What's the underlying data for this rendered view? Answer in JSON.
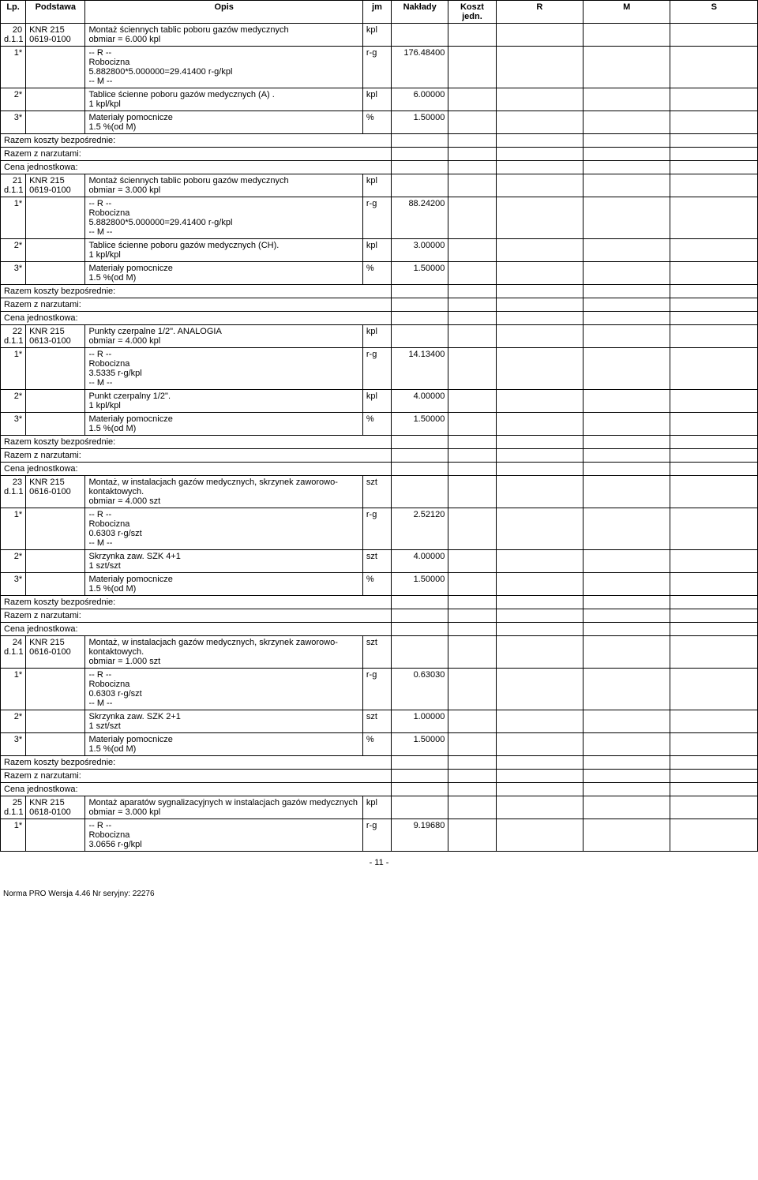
{
  "headers": {
    "lp": "Lp.",
    "podstawa": "Podstawa",
    "opis": "Opis",
    "jm": "jm",
    "naklady": "Nakłady",
    "koszt": "Koszt jedn.",
    "r": "R",
    "m": "M",
    "s": "S"
  },
  "summary_labels": {
    "razem_bez": "Razem koszty bezpośrednie:",
    "razem_narz": "Razem z narzutami:",
    "cena": "Cena jednostkowa:"
  },
  "items": [
    {
      "lp": "20 d.1.1",
      "podstawa": "KNR 215 0619-0100",
      "opis_main": "Montaż ściennych tablic poboru gazów medycznych\nobmiar = 6.000 kpl",
      "jm_main": "kpl",
      "sub": [
        {
          "lp": "1*",
          "opis": "-- R --\nRobocizna\n5.882800*5.000000=29.41400 r-g/kpl\n-- M --",
          "jm": "r-g",
          "naklady": "176.48400"
        },
        {
          "lp": "2*",
          "opis": "Tablice ścienne poboru gazów medycznych (A) .\n1 kpl/kpl",
          "jm": "kpl",
          "naklady": "6.00000"
        },
        {
          "lp": "3*",
          "opis": "Materiały pomocnicze\n1.5 %(od M)",
          "jm": "%",
          "naklady": "1.50000"
        }
      ]
    },
    {
      "lp": "21 d.1.1",
      "podstawa": "KNR 215 0619-0100",
      "opis_main": "Montaż ściennych tablic poboru gazów medycznych\nobmiar = 3.000 kpl",
      "jm_main": "kpl",
      "sub": [
        {
          "lp": "1*",
          "opis": "-- R --\nRobocizna\n5.882800*5.000000=29.41400 r-g/kpl\n-- M --",
          "jm": "r-g",
          "naklady": "88.24200"
        },
        {
          "lp": "2*",
          "opis": "Tablice ścienne poboru gazów medycznych (CH).\n1 kpl/kpl",
          "jm": "kpl",
          "naklady": "3.00000"
        },
        {
          "lp": "3*",
          "opis": "Materiały pomocnicze\n1.5 %(od M)",
          "jm": "%",
          "naklady": "1.50000"
        }
      ]
    },
    {
      "lp": "22 d.1.1",
      "podstawa": "KNR 215 0613-0100",
      "opis_main": "Punkty czerpalne 1/2\". ANALOGIA\nobmiar = 4.000 kpl",
      "jm_main": "kpl",
      "sub": [
        {
          "lp": "1*",
          "opis": "-- R --\nRobocizna\n3.5335 r-g/kpl\n-- M --",
          "jm": "r-g",
          "naklady": "14.13400"
        },
        {
          "lp": "2*",
          "opis": "Punkt czerpalny 1/2\".\n1 kpl/kpl",
          "jm": "kpl",
          "naklady": "4.00000"
        },
        {
          "lp": "3*",
          "opis": "Materiały pomocnicze\n1.5 %(od M)",
          "jm": "%",
          "naklady": "1.50000"
        }
      ]
    },
    {
      "lp": "23 d.1.1",
      "podstawa": "KNR 215 0616-0100",
      "opis_main": "Montaż, w instalacjach gazów medycznych, skrzynek zaworowo-kontaktowych.\nobmiar = 4.000 szt",
      "jm_main": "szt",
      "sub": [
        {
          "lp": "1*",
          "opis": "-- R --\nRobocizna\n0.6303 r-g/szt\n-- M --",
          "jm": "r-g",
          "naklady": "2.52120"
        },
        {
          "lp": "2*",
          "opis": "Skrzynka zaw. SZK 4+1\n1 szt/szt",
          "jm": "szt",
          "naklady": "4.00000"
        },
        {
          "lp": "3*",
          "opis": "Materiały pomocnicze\n1.5 %(od M)",
          "jm": "%",
          "naklady": "1.50000"
        }
      ]
    },
    {
      "lp": "24 d.1.1",
      "podstawa": "KNR 215 0616-0100",
      "opis_main": "Montaż, w instalacjach gazów medycznych, skrzynek zaworowo-kontaktowych.\nobmiar = 1.000 szt",
      "jm_main": "szt",
      "sub": [
        {
          "lp": "1*",
          "opis": "-- R --\nRobocizna\n0.6303 r-g/szt\n-- M --",
          "jm": "r-g",
          "naklady": "0.63030"
        },
        {
          "lp": "2*",
          "opis": "Skrzynka zaw. SZK 2+1\n1 szt/szt",
          "jm": "szt",
          "naklady": "1.00000"
        },
        {
          "lp": "3*",
          "opis": "Materiały pomocnicze\n1.5 %(od M)",
          "jm": "%",
          "naklady": "1.50000"
        }
      ]
    },
    {
      "lp": "25 d.1.1",
      "podstawa": "KNR 215 0618-0100",
      "opis_main": "Montaż aparatów sygnalizacyjnych w instalacjach gazów medycznych\nobmiar = 3.000 kpl",
      "jm_main": "kpl",
      "sub": [
        {
          "lp": "1*",
          "opis": "-- R --\nRobocizna\n3.0656 r-g/kpl",
          "jm": "r-g",
          "naklady": "9.19680"
        }
      ],
      "no_summary": true
    }
  ],
  "footer": {
    "pagenum": "- 11 -",
    "norma": "Norma PRO Wersja 4.46 Nr seryjny: 22276"
  }
}
